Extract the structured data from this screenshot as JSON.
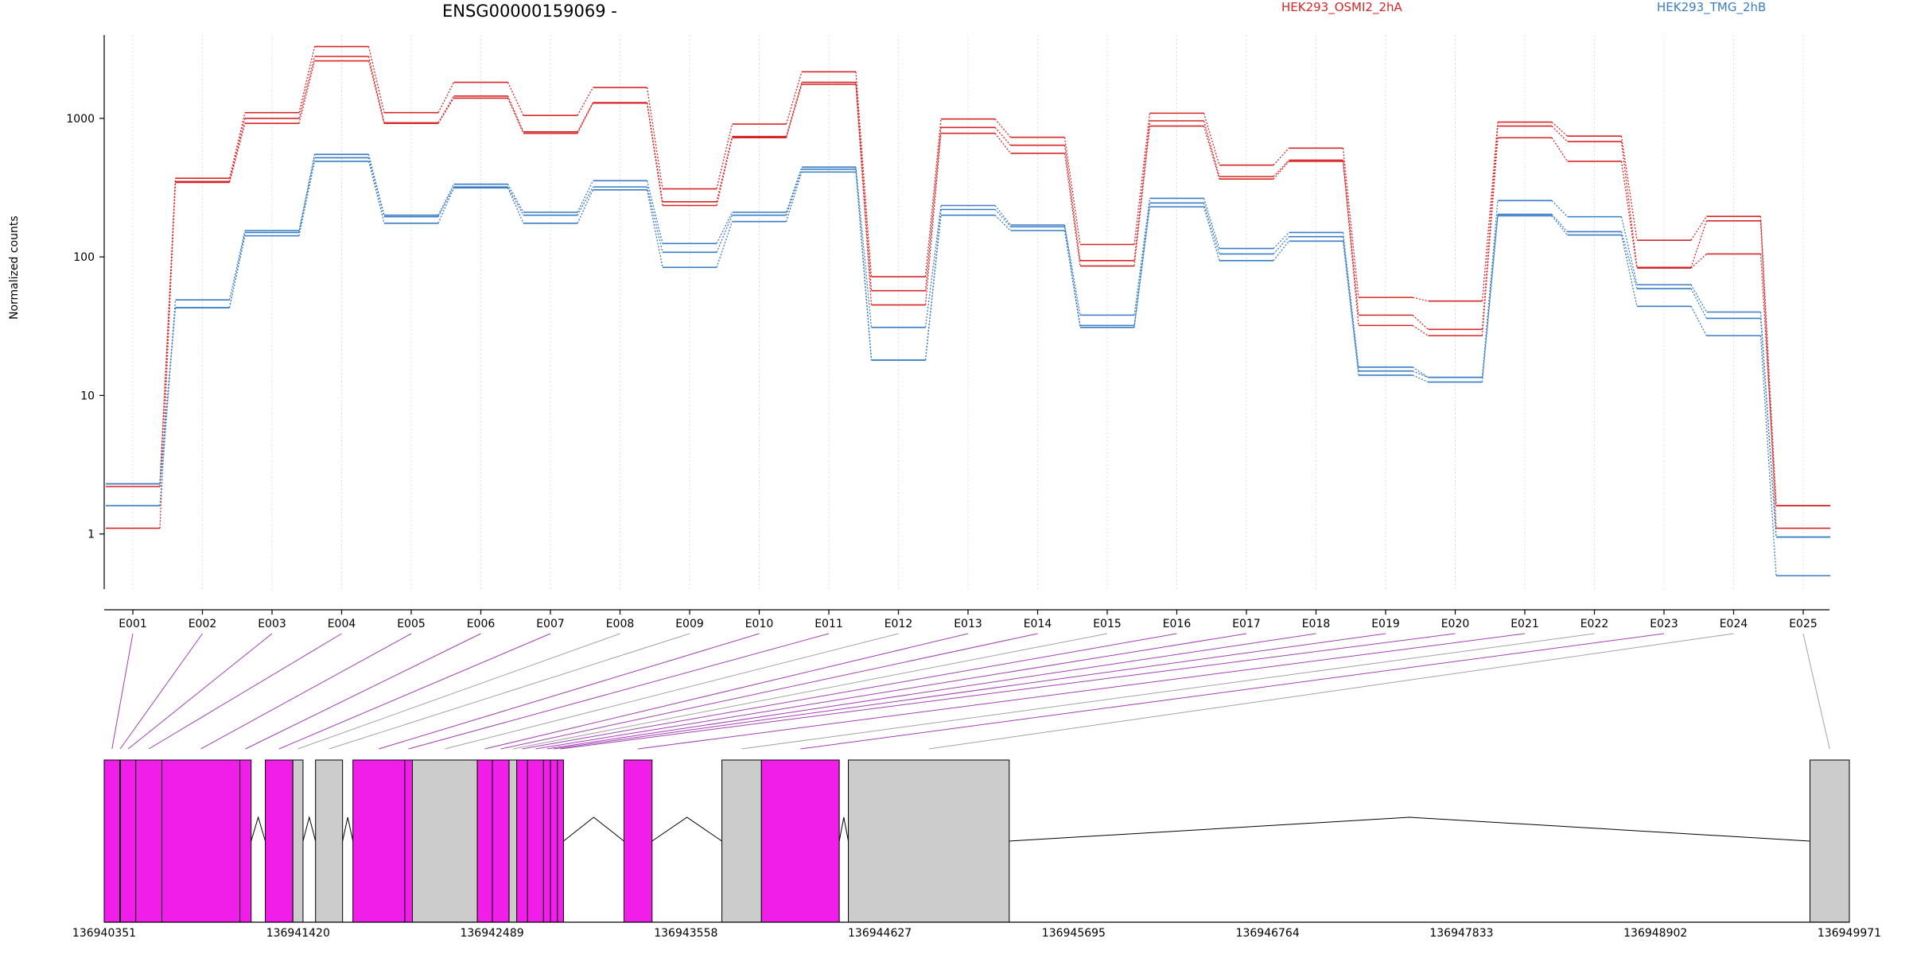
{
  "chart_data": {
    "type": "line",
    "title": "ENSG00000159069 -",
    "ylabel": "Normalized counts",
    "yscale": "log",
    "ylim": [
      0.4,
      4000
    ],
    "yticks": [
      1,
      10,
      100,
      1000
    ],
    "ytick_labels": [
      "1",
      "10",
      "100",
      "1000"
    ],
    "categories": [
      "E001",
      "E002",
      "E003",
      "E004",
      "E005",
      "E006",
      "E007",
      "E008",
      "E009",
      "E010",
      "E011",
      "E012",
      "E013",
      "E014",
      "E015",
      "E016",
      "E017",
      "E018",
      "E019",
      "E020",
      "E021",
      "E022",
      "E023",
      "E024",
      "E025"
    ],
    "colors": {
      "HEK293_OSMI2_2hA": "#d62728",
      "HEK293_TMG_2hB": "#3a7dc4",
      "exon_pink": "#f01ee8",
      "exon_grey": "#cccccc",
      "link_purple": "#a33fb3",
      "link_grey": "#a3a3a3"
    },
    "legend": [
      {
        "name": "HEK293_OSMI2_2hA",
        "color": "#d62728"
      },
      {
        "name": "HEK293_TMG_2hB",
        "color": "#3a7dc4"
      }
    ],
    "series": [
      {
        "name": "HEK293_OSMI2_2hA",
        "group": "HEK293_OSMI2_2hA",
        "values": [
          1.1,
          370,
          1100,
          3300,
          1100,
          1820,
          1050,
          1670,
          310,
          910,
          2170,
          72,
          990,
          730,
          123,
          1090,
          460,
          610,
          51,
          48,
          940,
          745,
          132,
          196,
          1.6
        ]
      },
      {
        "name": "HEK293_OSMI2_2hA",
        "group": "HEK293_OSMI2_2hA",
        "values": [
          2.3,
          350,
          1000,
          2800,
          930,
          1450,
          800,
          1300,
          250,
          740,
          1820,
          57,
          860,
          640,
          94,
          960,
          380,
          500,
          38,
          30,
          880,
          680,
          84,
          182,
          1.1
        ]
      },
      {
        "name": "HEK293_OSMI2_2hA",
        "group": "HEK293_OSMI2_2hA",
        "values": [
          2.2,
          345,
          920,
          2600,
          920,
          1400,
          780,
          1290,
          235,
          725,
          1760,
          45,
          780,
          560,
          86,
          880,
          365,
          490,
          32,
          27,
          725,
          490,
          83,
          105,
          1.6
        ]
      },
      {
        "name": "HEK293_TMG_2hB",
        "group": "HEK293_TMG_2hB",
        "values": [
          1.6,
          49,
          155,
          550,
          200,
          335,
          210,
          355,
          125,
          210,
          445,
          31,
          235,
          170,
          38,
          265,
          115,
          150,
          16,
          13.5,
          255,
          195,
          63,
          40,
          0.95
        ]
      },
      {
        "name": "HEK293_TMG_2hB",
        "group": "HEK293_TMG_2hB",
        "values": [
          2.3,
          43,
          150,
          520,
          195,
          320,
          200,
          320,
          108,
          200,
          430,
          18,
          220,
          165,
          32,
          245,
          105,
          140,
          15,
          13.5,
          203,
          152,
          59,
          36,
          0.95
        ]
      },
      {
        "name": "HEK293_TMG_2hB",
        "group": "HEK293_TMG_2hB",
        "values": [
          2.3,
          43,
          142,
          490,
          175,
          315,
          175,
          305,
          84,
          180,
          410,
          18,
          200,
          155,
          31,
          230,
          94,
          130,
          14,
          12.5,
          198,
          144,
          44,
          27,
          0.5
        ]
      }
    ],
    "genomic_axis": {
      "range": [
        136940351,
        136949971
      ],
      "tick_labels": [
        "136940351",
        "136941420",
        "136942489",
        "136943558",
        "136944627",
        "136945695",
        "136946764",
        "136947833",
        "136948902",
        "136949971"
      ]
    },
    "exons": [
      {
        "id": "E001",
        "start": 136940351,
        "end": 136940437,
        "color": "pink"
      },
      {
        "id": "E002",
        "start": 136940437,
        "end": 136940441,
        "color": "pink"
      },
      {
        "id": "E003",
        "start": 136940441,
        "end": 136940525,
        "color": "pink"
      },
      {
        "id": "E004",
        "start": 136940525,
        "end": 136940669,
        "color": "pink"
      },
      {
        "id": "E005",
        "start": 136940669,
        "end": 136941099,
        "color": "pink"
      },
      {
        "id": "E006",
        "start": 136941099,
        "end": 136941161,
        "color": "pink"
      },
      {
        "id": "E007",
        "start": 136941239,
        "end": 136941391,
        "color": "pink"
      },
      {
        "id": "E008",
        "start": 136941391,
        "end": 136941447,
        "color": "grey"
      },
      {
        "id": "E009",
        "start": 136941516,
        "end": 136941665,
        "color": "grey"
      },
      {
        "id": "E010",
        "start": 136941722,
        "end": 136942008,
        "color": "pink"
      },
      {
        "id": "E011",
        "start": 136942008,
        "end": 136942050,
        "color": "pink"
      },
      {
        "id": "E012",
        "start": 136942050,
        "end": 136942408,
        "color": "grey"
      },
      {
        "id": "E013",
        "start": 136942408,
        "end": 136942491,
        "color": "pink"
      },
      {
        "id": "E014",
        "start": 136942491,
        "end": 136942583,
        "color": "pink"
      },
      {
        "id": "E015",
        "start": 136942583,
        "end": 136942625,
        "color": "grey"
      },
      {
        "id": "E016",
        "start": 136942625,
        "end": 136942685,
        "color": "pink"
      },
      {
        "id": "E017",
        "start": 136942685,
        "end": 136942773,
        "color": "pink"
      },
      {
        "id": "E018",
        "start": 136942773,
        "end": 136942811,
        "color": "pink"
      },
      {
        "id": "E019",
        "start": 136942811,
        "end": 136942849,
        "color": "pink"
      },
      {
        "id": "E020",
        "start": 136942849,
        "end": 136942883,
        "color": "pink"
      },
      {
        "id": "E021",
        "start": 136943216,
        "end": 136943371,
        "color": "pink"
      },
      {
        "id": "E022",
        "start": 136943756,
        "end": 136943974,
        "color": "grey"
      },
      {
        "id": "E023",
        "start": 136943974,
        "end": 136944403,
        "color": "pink"
      },
      {
        "id": "E024",
        "start": 136944453,
        "end": 136945340,
        "color": "grey"
      },
      {
        "id": "E025",
        "start": 136949754,
        "end": 136949971,
        "color": "grey"
      }
    ]
  }
}
